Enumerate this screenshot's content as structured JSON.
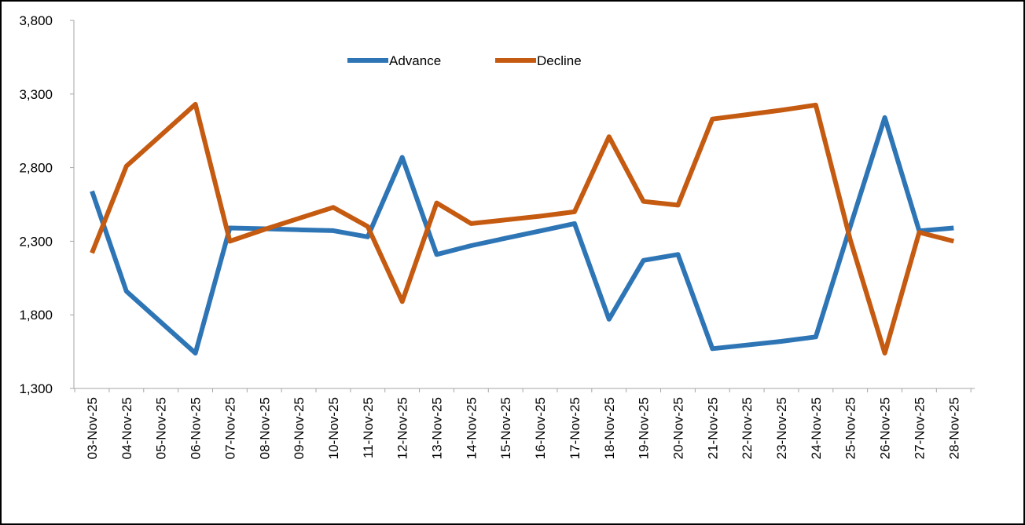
{
  "chart_data": {
    "type": "line",
    "title": "",
    "xlabel": "",
    "ylabel": "",
    "categories": [
      "03-Nov-25",
      "04-Nov-25",
      "05-Nov-25",
      "06-Nov-25",
      "07-Nov-25",
      "08-Nov-25",
      "09-Nov-25",
      "10-Nov-25",
      "11-Nov-25",
      "12-Nov-25",
      "13-Nov-25",
      "14-Nov-25",
      "15-Nov-25",
      "16-Nov-25",
      "17-Nov-25",
      "18-Nov-25",
      "19-Nov-25",
      "20-Nov-25",
      "21-Nov-25",
      "22-Nov-25",
      "23-Nov-25",
      "24-Nov-25",
      "25-Nov-25",
      "26-Nov-25",
      "27-Nov-25",
      "28-Nov-25"
    ],
    "ylim": [
      1300,
      3800
    ],
    "yticks": [
      1300,
      1800,
      2300,
      2800,
      3300,
      3800
    ],
    "ytick_labels": [
      "1,300",
      "1,800",
      "2,300",
      "2,800",
      "3,300",
      "3,800"
    ],
    "grid": false,
    "legend_position": "top",
    "series": [
      {
        "name": "Advance",
        "color": "#2E75B6",
        "values": [
          2640,
          1960,
          1750,
          1540,
          2390,
          2385,
          2378,
          2372,
          2330,
          2870,
          2210,
          2270,
          2320,
          2370,
          2420,
          1770,
          2170,
          2210,
          1570,
          1595,
          1620,
          1650,
          2400,
          3140,
          2370,
          2390
        ]
      },
      {
        "name": "Decline",
        "color": "#C55A11",
        "values": [
          2220,
          2810,
          3020,
          3230,
          2300,
          2380,
          2455,
          2530,
          2400,
          1890,
          2560,
          2420,
          2445,
          2470,
          2500,
          3010,
          2570,
          2545,
          3130,
          3160,
          3190,
          3225,
          2310,
          1540,
          2360,
          2300
        ]
      }
    ]
  }
}
